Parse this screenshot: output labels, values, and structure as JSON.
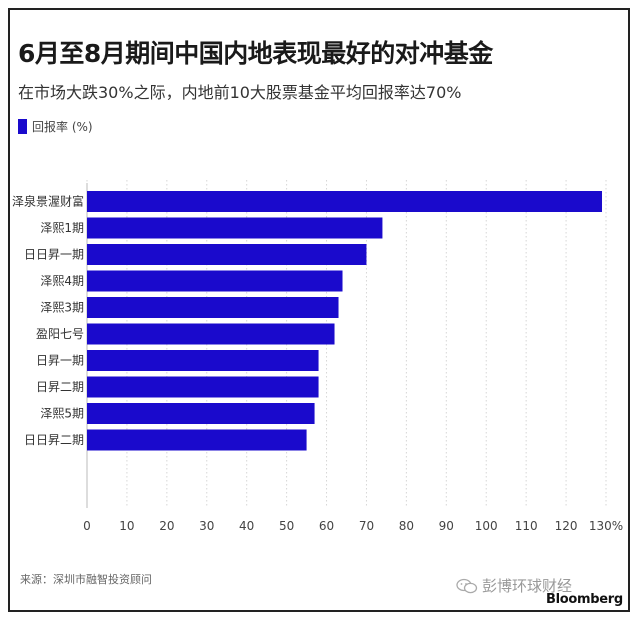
{
  "title": "6月至8月期间中国内地表现最好的对冲基金",
  "subtitle": "在市场大跌30%之际，内地前10大股票基金平均回报率达70%",
  "legend_label": "回报率 (%)",
  "bar_color": "#1a0acc",
  "source": "来源：深圳市融智投资顾问",
  "watermark": "彭博环球财经",
  "brand": "Bloomberg",
  "chart_data": {
    "type": "bar",
    "orientation": "horizontal",
    "categories": [
      "泽泉景渥财富",
      "泽熙1期",
      "日日昇一期",
      "泽熙4期",
      "泽熙3期",
      "盈阳七号",
      "日昇一期",
      "日昇二期",
      "泽熙5期",
      "日日昇二期"
    ],
    "series": [
      {
        "name": "回报率 (%)",
        "values": [
          129,
          74,
          70,
          64,
          63,
          62,
          58,
          58,
          57,
          55
        ]
      }
    ],
    "xlim": [
      0,
      130
    ],
    "xticks": [
      "0",
      "10",
      "20",
      "30",
      "40",
      "50",
      "60",
      "70",
      "80",
      "90",
      "100",
      "110",
      "120",
      "130%"
    ],
    "grid": true,
    "legend_position": "top-left"
  }
}
